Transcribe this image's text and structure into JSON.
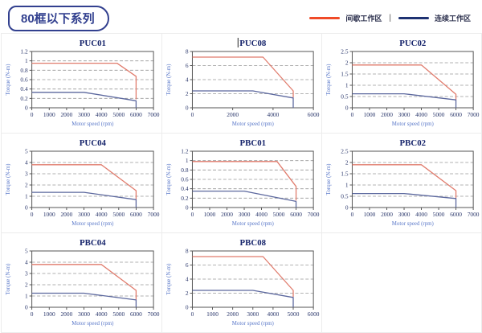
{
  "page": {
    "title": "80框以下系列",
    "legend": [
      {
        "label": "间歇工作区",
        "color": "#f04b28"
      },
      {
        "label": "连续工作区",
        "color": "#1e3272"
      }
    ],
    "legend_separator": "|"
  },
  "chart_data": [
    {
      "id": "puc01",
      "type": "line",
      "title": "PUC01",
      "xlabel": "Motor speed (rpm)",
      "ylabel": "Torque (N-m)",
      "xlim": [
        0,
        7000
      ],
      "xstep": 1000,
      "ylim": [
        0,
        1.2
      ],
      "ystep": 0.2,
      "grid": "horizontal-dashed",
      "legend_position": "none",
      "series": [
        {
          "name": "间歇工作区",
          "color": "#e07b6c",
          "points": [
            [
              0,
              0.95
            ],
            [
              4900,
              0.95
            ],
            [
              6000,
              0.67
            ],
            [
              6000,
              0.18
            ]
          ]
        },
        {
          "name": "连续工作区",
          "color": "#5c689e",
          "points": [
            [
              0,
              0.33
            ],
            [
              3000,
              0.33
            ],
            [
              6000,
              0.15
            ],
            [
              6000,
              0
            ]
          ]
        }
      ]
    },
    {
      "id": "puc08",
      "type": "line",
      "title": "PUC08",
      "caret": true,
      "xlabel": "Motor speed (rpm)",
      "ylabel": "Torque (N-m)",
      "xlim": [
        0,
        6000
      ],
      "xstep": 2000,
      "ylim": [
        0,
        8
      ],
      "ystep": 2,
      "grid": "horizontal-dashed",
      "legend_position": "none",
      "series": [
        {
          "name": "间歇工作区",
          "color": "#e07b6c",
          "points": [
            [
              0,
              7.2
            ],
            [
              3500,
              7.2
            ],
            [
              5000,
              2.4
            ],
            [
              5000,
              1.45
            ]
          ]
        },
        {
          "name": "连续工作区",
          "color": "#5c689e",
          "points": [
            [
              0,
              2.4
            ],
            [
              3000,
              2.4
            ],
            [
              5000,
              1.4
            ],
            [
              5000,
              0
            ]
          ]
        }
      ]
    },
    {
      "id": "puc02",
      "type": "line",
      "title": "PUC02",
      "xlabel": "Motor speed (rpm)",
      "ylabel": "Torque (N-m)",
      "xlim": [
        0,
        7000
      ],
      "xstep": 1000,
      "ylim": [
        0,
        2.5
      ],
      "ystep": 0.5,
      "grid": "horizontal-dashed",
      "legend_position": "none",
      "series": [
        {
          "name": "间歇工作区",
          "color": "#e07b6c",
          "points": [
            [
              0,
              1.9
            ],
            [
              4000,
              1.9
            ],
            [
              6000,
              0.6
            ],
            [
              6000,
              0.35
            ]
          ]
        },
        {
          "name": "连续工作区",
          "color": "#5c689e",
          "points": [
            [
              0,
              0.62
            ],
            [
              3000,
              0.62
            ],
            [
              6000,
              0.35
            ],
            [
              6000,
              0
            ]
          ]
        }
      ]
    },
    {
      "id": "puc04",
      "type": "line",
      "title": "PUC04",
      "xlabel": "Motor speed (rpm)",
      "ylabel": "Torque (N-m)",
      "xlim": [
        0,
        7000
      ],
      "xstep": 1000,
      "ylim": [
        0,
        5
      ],
      "ystep": 1,
      "grid": "horizontal-dashed",
      "legend_position": "none",
      "series": [
        {
          "name": "间歇工作区",
          "color": "#e07b6c",
          "points": [
            [
              0,
              3.8
            ],
            [
              4000,
              3.8
            ],
            [
              6000,
              1.5
            ],
            [
              6000,
              0.7
            ]
          ]
        },
        {
          "name": "连续工作区",
          "color": "#5c689e",
          "points": [
            [
              0,
              1.35
            ],
            [
              3000,
              1.35
            ],
            [
              6000,
              0.7
            ],
            [
              6000,
              0
            ]
          ]
        }
      ]
    },
    {
      "id": "pbc01",
      "type": "line",
      "title": "PBC01",
      "xlabel": "Motor speed (rpm)",
      "ylabel": "Torque (N-m)",
      "xlim": [
        0,
        7000
      ],
      "xstep": 1000,
      "ylim": [
        0,
        1.2
      ],
      "ystep": 0.2,
      "grid": "horizontal-dashed",
      "legend_position": "none",
      "series": [
        {
          "name": "间歇工作区",
          "color": "#e07b6c",
          "points": [
            [
              0,
              0.98
            ],
            [
              4900,
              0.98
            ],
            [
              6000,
              0.45
            ],
            [
              6000,
              0.15
            ]
          ]
        },
        {
          "name": "连续工作区",
          "color": "#5c689e",
          "points": [
            [
              0,
              0.35
            ],
            [
              3000,
              0.35
            ],
            [
              6000,
              0.13
            ],
            [
              6000,
              0
            ]
          ]
        }
      ]
    },
    {
      "id": "pbc02",
      "type": "line",
      "title": "PBC02",
      "xlabel": "Motor speed (rpm)",
      "ylabel": "Torque (N-m)",
      "xlim": [
        0,
        7000
      ],
      "xstep": 1000,
      "ylim": [
        0,
        2.5
      ],
      "ystep": 0.5,
      "grid": "horizontal-dashed",
      "legend_position": "none",
      "series": [
        {
          "name": "间歇工作区",
          "color": "#e07b6c",
          "points": [
            [
              0,
              1.9
            ],
            [
              4000,
              1.9
            ],
            [
              6000,
              0.75
            ],
            [
              6000,
              0.4
            ]
          ]
        },
        {
          "name": "连续工作区",
          "color": "#5c689e",
          "points": [
            [
              0,
              0.62
            ],
            [
              3000,
              0.62
            ],
            [
              6000,
              0.4
            ],
            [
              6000,
              0
            ]
          ]
        }
      ]
    },
    {
      "id": "pbc04",
      "type": "line",
      "title": "PBC04",
      "xlabel": "Motor speed (rpm)",
      "ylabel": "Torque (N-m)",
      "xlim": [
        0,
        7000
      ],
      "xstep": 1000,
      "ylim": [
        0,
        5
      ],
      "ystep": 1,
      "grid": "horizontal-dashed",
      "legend_position": "none",
      "series": [
        {
          "name": "间歇工作区",
          "color": "#e07b6c",
          "points": [
            [
              0,
              3.8
            ],
            [
              4000,
              3.8
            ],
            [
              6000,
              1.5
            ],
            [
              6000,
              0.65
            ]
          ]
        },
        {
          "name": "连续工作区",
          "color": "#5c689e",
          "points": [
            [
              0,
              1.25
            ],
            [
              3000,
              1.25
            ],
            [
              6000,
              0.65
            ],
            [
              6000,
              0
            ]
          ]
        }
      ]
    },
    {
      "id": "pbc08",
      "type": "line",
      "title": "PBC08",
      "xlabel": "Motor speed (rpm)",
      "ylabel": "Torque (N-m)",
      "xlim": [
        0,
        6000
      ],
      "xstep": 1000,
      "ylim": [
        0,
        8
      ],
      "ystep": 2,
      "grid": "horizontal-dashed",
      "legend_position": "none",
      "series": [
        {
          "name": "间歇工作区",
          "color": "#e07b6c",
          "points": [
            [
              0,
              7.2
            ],
            [
              3500,
              7.2
            ],
            [
              5000,
              2.4
            ],
            [
              5000,
              1.45
            ]
          ]
        },
        {
          "name": "连续工作区",
          "color": "#5c689e",
          "points": [
            [
              0,
              2.4
            ],
            [
              3000,
              2.4
            ],
            [
              5000,
              1.4
            ],
            [
              5000,
              0
            ]
          ]
        }
      ]
    }
  ]
}
